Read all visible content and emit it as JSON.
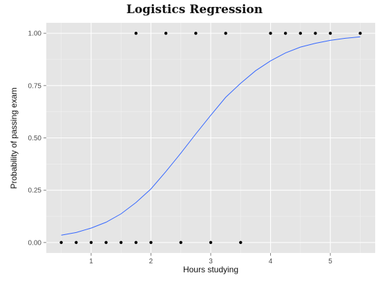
{
  "chart_data": {
    "type": "scatter",
    "title": "Logistics Regression",
    "xlabel": "Hours studying",
    "ylabel": "Probability of passing exam",
    "xlim": [
      0.25,
      5.75
    ],
    "ylim": [
      -0.05,
      1.05
    ],
    "x_ticks": [
      1,
      2,
      3,
      4,
      5
    ],
    "x_tick_labels": [
      "1",
      "2",
      "3",
      "4",
      "5"
    ],
    "y_ticks": [
      0,
      0.25,
      0.5,
      0.75,
      1
    ],
    "y_tick_labels": [
      "0.00",
      "0.25",
      "0.50",
      "0.75",
      "1.00"
    ],
    "grid": true,
    "legend": "none",
    "colors": {
      "panel": "#e5e5e5",
      "grid": "#ffffff",
      "points": "#000000",
      "curve": "#3366ff"
    },
    "series": [
      {
        "type": "scatter",
        "x": [
          0.5,
          0.75,
          1.0,
          1.25,
          1.5,
          1.75,
          1.75,
          2.0,
          2.25,
          2.5,
          2.75,
          3.0,
          3.25,
          3.5,
          4.0,
          4.25,
          4.5,
          4.75,
          5.0,
          5.5
        ],
        "y": [
          0,
          0,
          0,
          0,
          0,
          0,
          1,
          0,
          1,
          0,
          1,
          0,
          1,
          0,
          1,
          1,
          1,
          1,
          1,
          1
        ]
      },
      {
        "type": "line",
        "x": [
          0.5,
          0.75,
          1.0,
          1.25,
          1.5,
          1.75,
          2.0,
          2.25,
          2.5,
          2.75,
          3.0,
          3.25,
          3.5,
          3.75,
          4.0,
          4.25,
          4.5,
          4.75,
          5.0,
          5.25,
          5.5
        ],
        "y": [
          0.035,
          0.048,
          0.069,
          0.097,
          0.137,
          0.191,
          0.256,
          0.339,
          0.427,
          0.519,
          0.608,
          0.694,
          0.761,
          0.821,
          0.868,
          0.906,
          0.934,
          0.952,
          0.966,
          0.976,
          0.983
        ]
      }
    ]
  }
}
